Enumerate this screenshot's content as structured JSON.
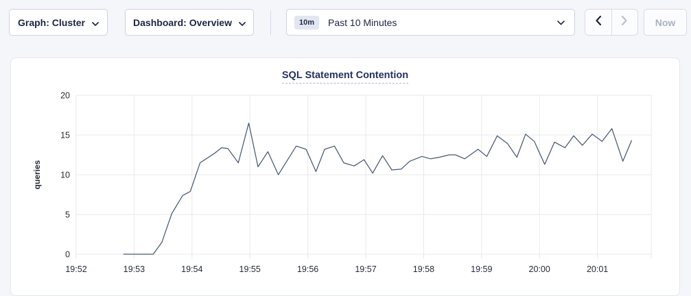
{
  "toolbar": {
    "graph_dropdown": {
      "label": "Graph: Cluster"
    },
    "dashboard_dropdown": {
      "label": "Dashboard: Overview"
    },
    "time_range": {
      "badge": "10m",
      "label": "Past 10 Minutes"
    },
    "now_label": "Now",
    "prev_enabled": true,
    "next_enabled": false
  },
  "colors": {
    "line": "#475872",
    "grid": "#e8e8eb",
    "title": "#26315e",
    "page_background": "#f5f6fa"
  },
  "chart_data": {
    "type": "line",
    "title": "SQL Statement Contention",
    "ylabel": "queries",
    "ylim": [
      0,
      20
    ],
    "y_ticks": [
      0,
      5,
      10,
      15,
      20
    ],
    "grid": true,
    "legend": "none",
    "x_axis": {
      "unit": "minutes since 19:52",
      "tick_interval_minutes": 1,
      "ticks": [
        "19:52",
        "19:53",
        "19:54",
        "19:55",
        "19:56",
        "19:57",
        "19:58",
        "19:59",
        "20:00",
        "20:01"
      ],
      "range_minutes": [
        0,
        9.93
      ]
    },
    "series": [
      {
        "name": "SQL Statement Contention",
        "color": "#475872",
        "points": [
          [
            0.82,
            0
          ],
          [
            1.33,
            0
          ],
          [
            1.48,
            1.5
          ],
          [
            1.65,
            5.1
          ],
          [
            1.84,
            7.4
          ],
          [
            1.97,
            7.9
          ],
          [
            2.14,
            11.5
          ],
          [
            2.39,
            12.7
          ],
          [
            2.51,
            13.4
          ],
          [
            2.62,
            13.3
          ],
          [
            2.8,
            11.5
          ],
          [
            2.98,
            16.5
          ],
          [
            3.14,
            11.0
          ],
          [
            3.31,
            12.9
          ],
          [
            3.49,
            10.0
          ],
          [
            3.8,
            13.6
          ],
          [
            3.97,
            13.2
          ],
          [
            4.14,
            10.4
          ],
          [
            4.29,
            13.2
          ],
          [
            4.46,
            13.6
          ],
          [
            4.62,
            11.5
          ],
          [
            4.8,
            11.1
          ],
          [
            4.97,
            11.9
          ],
          [
            5.12,
            10.2
          ],
          [
            5.29,
            12.4
          ],
          [
            5.45,
            10.6
          ],
          [
            5.61,
            10.7
          ],
          [
            5.76,
            11.7
          ],
          [
            5.97,
            12.3
          ],
          [
            6.12,
            12.0
          ],
          [
            6.27,
            12.2
          ],
          [
            6.44,
            12.5
          ],
          [
            6.55,
            12.5
          ],
          [
            6.71,
            12.0
          ],
          [
            6.94,
            13.2
          ],
          [
            7.09,
            12.3
          ],
          [
            7.27,
            14.9
          ],
          [
            7.45,
            13.9
          ],
          [
            7.61,
            12.2
          ],
          [
            7.76,
            15.1
          ],
          [
            7.91,
            14.2
          ],
          [
            8.09,
            11.3
          ],
          [
            8.26,
            14.1
          ],
          [
            8.44,
            13.4
          ],
          [
            8.59,
            14.9
          ],
          [
            8.74,
            13.7
          ],
          [
            8.91,
            15.1
          ],
          [
            9.08,
            14.2
          ],
          [
            9.25,
            15.8
          ],
          [
            9.44,
            11.7
          ],
          [
            9.59,
            14.3
          ]
        ]
      }
    ]
  }
}
